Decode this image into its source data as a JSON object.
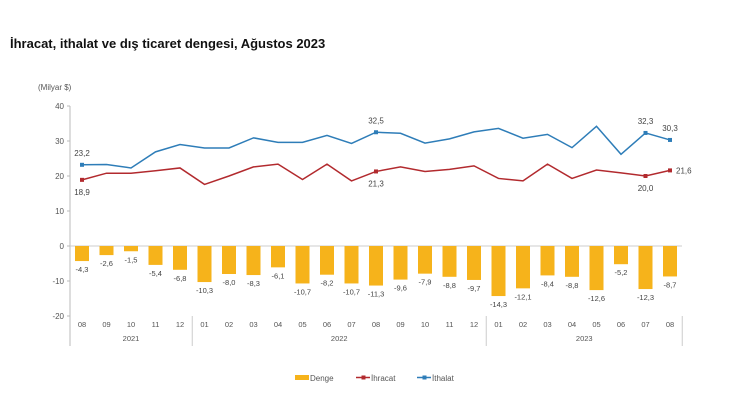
{
  "chart_data": {
    "type": "bar+line",
    "title": "İhracat, ithalat ve dış ticaret dengesi, Ağustos 2023",
    "ylabel": "(Milyar $)",
    "ylim": [
      -20,
      40
    ],
    "yticks": [
      40,
      30,
      20,
      10,
      0,
      -10,
      -20
    ],
    "grid": false,
    "legend_placement": "bottom",
    "categories": [
      "08",
      "09",
      "10",
      "11",
      "12",
      "01",
      "02",
      "03",
      "04",
      "05",
      "06",
      "07",
      "08",
      "09",
      "10",
      "11",
      "12",
      "01",
      "02",
      "03",
      "04",
      "05",
      "06",
      "07",
      "08"
    ],
    "year_groups": [
      {
        "label": "2021",
        "count": 5
      },
      {
        "label": "2022",
        "count": 12
      },
      {
        "label": "2023",
        "count": 8
      }
    ],
    "series": [
      {
        "name": "Denge",
        "type": "bar",
        "color": "#F6B31B",
        "values": [
          -4.3,
          -2.6,
          -1.5,
          -5.4,
          -6.8,
          -10.3,
          -8.0,
          -8.3,
          -6.1,
          -10.7,
          -8.2,
          -10.7,
          -11.3,
          -9.6,
          -7.9,
          -8.8,
          -9.7,
          -14.3,
          -12.1,
          -8.4,
          -8.8,
          -12.6,
          -5.2,
          -12.3,
          -8.7
        ],
        "labels": [
          "-4,3",
          "-2,6",
          "-1,5",
          "-5,4",
          "-6,8",
          "-10,3",
          "-8,0",
          "-8,3",
          "-6,1",
          "-10,7",
          "-8,2",
          "-10,7",
          "-11,3",
          "-9,6",
          "-7,9",
          "-8,8",
          "-9,7",
          "-14,3",
          "-12,1",
          "-8,4",
          "-8,8",
          "-12,6",
          "-5,2",
          "-12,3",
          "-8,7"
        ]
      },
      {
        "name": "İhracat",
        "type": "line",
        "color": "#B22A2E",
        "values": [
          18.9,
          20.8,
          20.8,
          21.5,
          22.3,
          17.6,
          20.0,
          22.6,
          23.4,
          19.0,
          23.4,
          18.6,
          21.3,
          22.6,
          21.3,
          21.9,
          22.9,
          19.3,
          18.6,
          23.4,
          19.3,
          21.7,
          20.9,
          20.0,
          21.6
        ],
        "point_labels": [
          {
            "index": 0,
            "text": "18,9",
            "pos": "below"
          },
          {
            "index": 12,
            "text": "21,3",
            "pos": "below"
          },
          {
            "index": 23,
            "text": "20,0",
            "pos": "below"
          },
          {
            "index": 24,
            "text": "21,6",
            "pos": "right"
          }
        ]
      },
      {
        "name": "İthalat",
        "type": "line",
        "color": "#2E7DB8",
        "values": [
          23.2,
          23.3,
          22.3,
          26.9,
          29.0,
          28.0,
          28.0,
          30.9,
          29.6,
          29.6,
          31.6,
          29.3,
          32.5,
          32.2,
          29.4,
          30.6,
          32.6,
          33.6,
          30.8,
          31.9,
          28.1,
          34.2,
          26.2,
          32.3,
          30.3
        ],
        "point_labels": [
          {
            "index": 0,
            "text": "23,2",
            "pos": "above"
          },
          {
            "index": 12,
            "text": "32,5",
            "pos": "above"
          },
          {
            "index": 23,
            "text": "32,3",
            "pos": "above"
          },
          {
            "index": 24,
            "text": "30,3",
            "pos": "above"
          }
        ]
      }
    ]
  }
}
